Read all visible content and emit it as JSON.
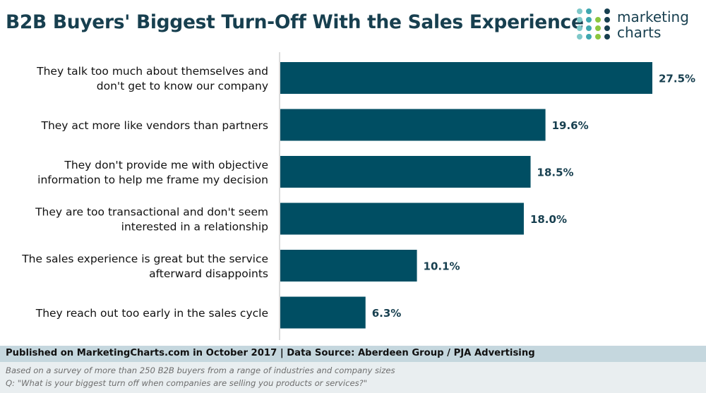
{
  "header": {
    "title": "B2B Buyers' Biggest Turn-Off With the Sales Experience",
    "logo_line1": "marketing",
    "logo_line2": "charts"
  },
  "chart_data": {
    "type": "bar",
    "orientation": "horizontal",
    "title": "B2B Buyers' Biggest Turn-Off With the Sales Experience",
    "categories": [
      [
        "They talk too much about themselves and",
        "don't get to know our company"
      ],
      [
        "They act more like vendors than partners"
      ],
      [
        "They don't provide me with objective",
        "information to help me frame my decision"
      ],
      [
        "They are too transactional and don't seem",
        "interested in a relationship"
      ],
      [
        "The sales experience is great but the service",
        "afterward disappoints"
      ],
      [
        "They reach out too early in the sales cycle"
      ]
    ],
    "values": [
      27.5,
      19.6,
      18.5,
      18.0,
      10.1,
      6.3
    ],
    "labels": [
      "27.5%",
      "19.6%",
      "18.5%",
      "18.0%",
      "10.1%",
      "6.3%"
    ],
    "unit": "%",
    "xlim": [
      0,
      27.5
    ],
    "bar_color": "#004e63",
    "grid": false,
    "legend": "none"
  },
  "footer": {
    "published": "Published on MarketingCharts.com in October 2017 | Data Source: Aberdeen Group / PJA Advertising",
    "note1": "Based on a survey of more than 250 B2B buyers from a range of industries and company sizes",
    "note2": "Q: \"What is your biggest turn off when companies are selling you products or services?\""
  },
  "colors": {
    "title": "#173f4f",
    "bar": "#004e63",
    "axis": "#b8b8b8",
    "footer_bar": "#c5d7de",
    "footer_notes": "#e9eef0",
    "logo_dots": [
      "#7ec8c9",
      "#3fa7b0",
      "#8cc63f",
      "#173f4f"
    ]
  }
}
